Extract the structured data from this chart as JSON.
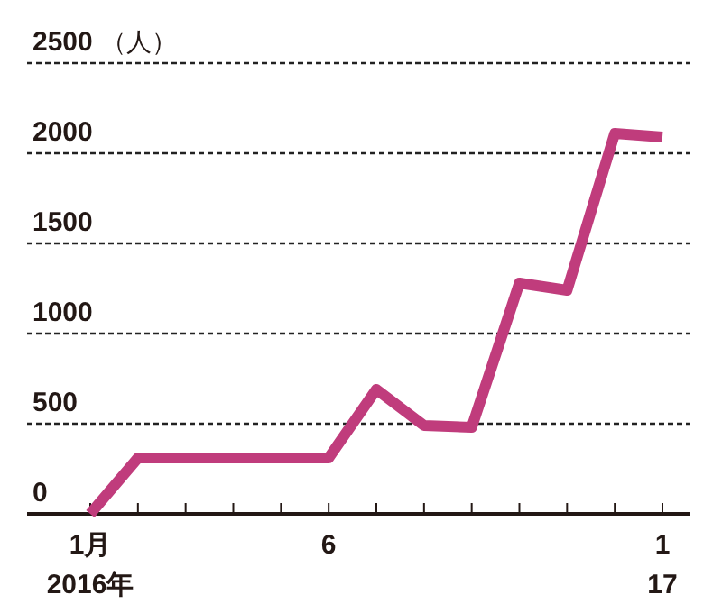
{
  "chart_data": {
    "type": "line",
    "ylabel": "（人）",
    "categories": [
      "1月\n2016年",
      null,
      null,
      null,
      null,
      "6",
      null,
      null,
      null,
      null,
      null,
      null,
      "1\n17"
    ],
    "series": [
      {
        "color": "#c03c7c",
        "values": [
          0,
          310,
          310,
          310,
          310,
          310,
          690,
          490,
          480,
          1280,
          1240,
          2110,
          2090
        ]
      }
    ],
    "ylim": [
      0,
      2500
    ],
    "yticks": [
      0,
      500,
      1000,
      1500,
      2000,
      2500
    ],
    "grid": "y",
    "marker": "none",
    "line_style": "solid"
  }
}
